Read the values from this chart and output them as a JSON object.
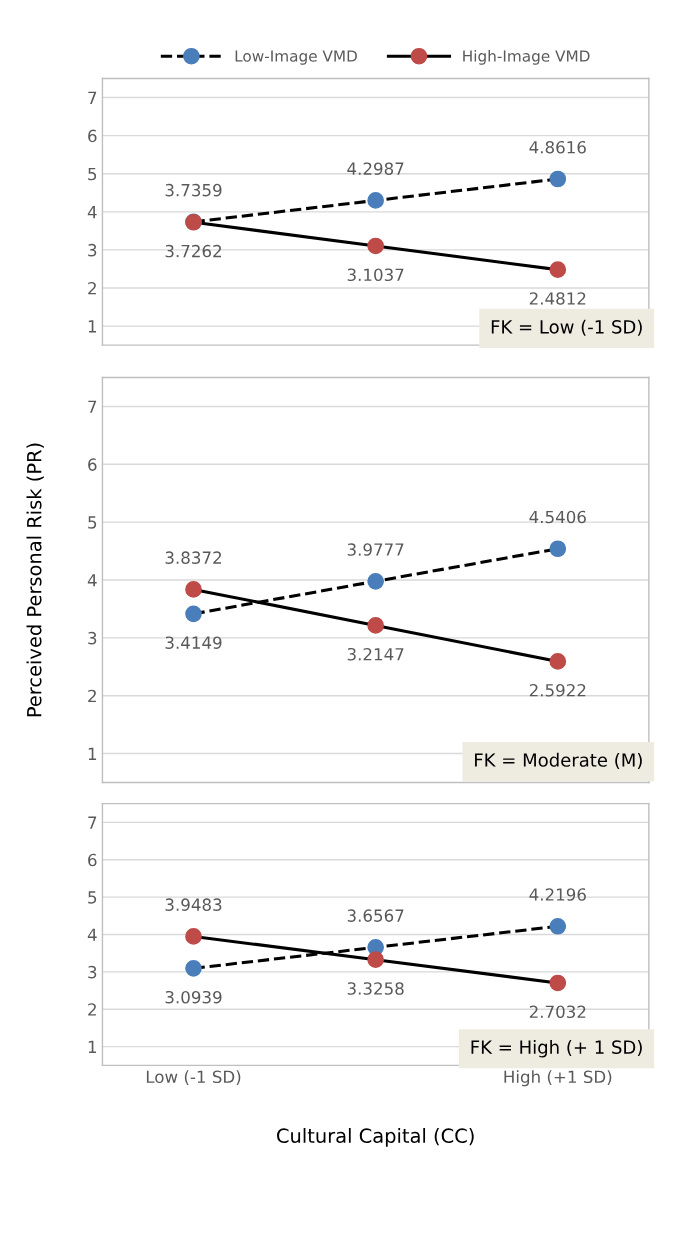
{
  "chart_data": [
    {
      "type": "line",
      "categories": [
        null,
        null,
        null
      ],
      "ylim": [
        0.5,
        7.5
      ],
      "yticks": [
        1,
        2,
        3,
        4,
        5,
        6,
        7
      ],
      "grid": "y",
      "legend": "top",
      "tick_labels": "y",
      "marker": "circle",
      "data_labels": true,
      "annotations": [
        "FK = Low (-1 SD)"
      ],
      "series": [
        {
          "name": "Low-Image VMD",
          "color": "#4a7ebb",
          "line_style": "dashed",
          "values": [
            3.7359,
            4.2987,
            4.8616
          ]
        },
        {
          "name": "High-Image VMD",
          "color": "#be4b48",
          "line_style": "solid",
          "values": [
            3.7262,
            3.1037,
            2.4812
          ]
        }
      ]
    },
    {
      "type": "line",
      "categories": [
        null,
        null,
        null
      ],
      "ylim": [
        0.5,
        7.5
      ],
      "yticks": [
        1,
        2,
        3,
        4,
        5,
        6,
        7
      ],
      "grid": "y",
      "tick_labels": "y",
      "marker": "circle",
      "data_labels": true,
      "ylabel": "Perceived Personal Risk (PR)",
      "annotations": [
        "FK = Moderate (M)"
      ],
      "series": [
        {
          "color": "#4a7ebb",
          "line_style": "dashed",
          "values": [
            3.4149,
            3.9777,
            4.5406
          ]
        },
        {
          "color": "#be4b48",
          "line_style": "solid",
          "values": [
            3.8372,
            3.2147,
            2.5922
          ]
        }
      ]
    },
    {
      "type": "line",
      "categories": [
        "Low (-1 SD)",
        null,
        "High (+1 SD)"
      ],
      "ylim": [
        0.5,
        7.5
      ],
      "yticks": [
        1,
        2,
        3,
        4,
        5,
        6,
        7
      ],
      "grid": "y",
      "marker": "circle",
      "data_labels": true,
      "xlabel": "Cultural Capital (CC)",
      "annotations": [
        "FK = High (+ 1 SD)"
      ],
      "series": [
        {
          "color": "#4a7ebb",
          "line_style": "dashed",
          "values": [
            3.0939,
            3.6567,
            4.2196
          ]
        },
        {
          "color": "#be4b48",
          "line_style": "solid",
          "values": [
            3.9483,
            3.3258,
            2.7032
          ]
        }
      ]
    }
  ]
}
